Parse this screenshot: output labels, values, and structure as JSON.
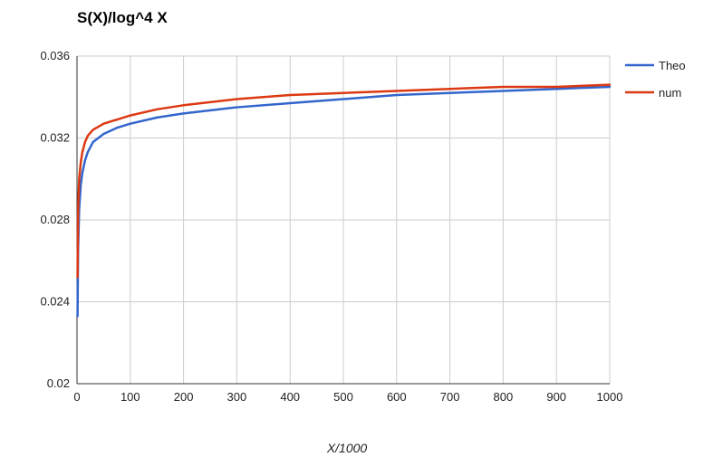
{
  "chart_data": {
    "type": "line",
    "title": "S(X)/log^4 X",
    "xlabel": "X/1000",
    "ylabel": "",
    "xlim": [
      0,
      1000
    ],
    "ylim": [
      0.02,
      0.036
    ],
    "x_ticks": [
      "0",
      "100",
      "200",
      "300",
      "400",
      "500",
      "600",
      "700",
      "800",
      "900",
      "1000"
    ],
    "y_ticks": [
      "0.02",
      "0.024",
      "0.028",
      "0.032",
      "0.036"
    ],
    "grid": true,
    "legend_position": "right",
    "series": [
      {
        "name": "Theo",
        "color": "#3366cc",
        "x": [
          1,
          2,
          4,
          7,
          10,
          15,
          20,
          30,
          50,
          75,
          100,
          150,
          200,
          300,
          400,
          500,
          600,
          700,
          800,
          900,
          1000
        ],
        "values": [
          0.0233,
          0.0265,
          0.0285,
          0.0297,
          0.0303,
          0.0309,
          0.0313,
          0.0318,
          0.0322,
          0.0325,
          0.0327,
          0.033,
          0.0332,
          0.0335,
          0.0337,
          0.0339,
          0.0341,
          0.0342,
          0.0343,
          0.0344,
          0.0345
        ]
      },
      {
        "name": "num",
        "color": "#dc3912",
        "x": [
          1,
          2,
          4,
          7,
          10,
          15,
          20,
          30,
          50,
          75,
          100,
          150,
          200,
          300,
          400,
          500,
          600,
          700,
          800,
          900,
          1000
        ],
        "values": [
          0.0252,
          0.0285,
          0.03,
          0.0308,
          0.0313,
          0.0318,
          0.0321,
          0.0324,
          0.0327,
          0.0329,
          0.0331,
          0.0334,
          0.0336,
          0.0339,
          0.0341,
          0.0342,
          0.0343,
          0.0344,
          0.0345,
          0.0345,
          0.0346
        ]
      }
    ]
  }
}
